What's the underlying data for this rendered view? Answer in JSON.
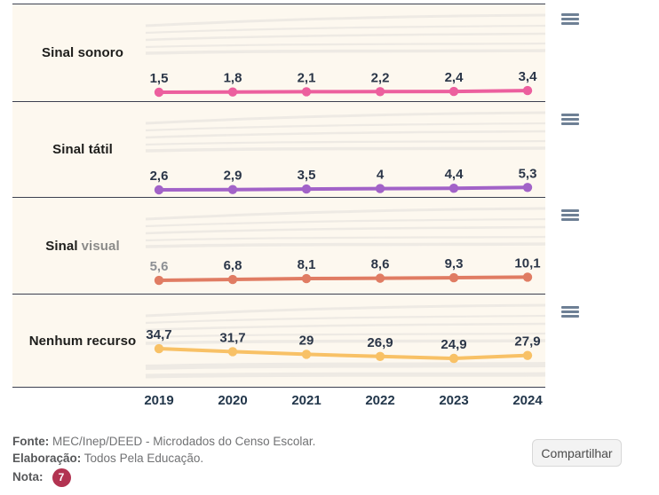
{
  "chart_data": {
    "type": "line",
    "layout": "small-multiples",
    "categories": [
      "2019",
      "2020",
      "2021",
      "2022",
      "2023",
      "2024"
    ],
    "series": [
      {
        "name": "Sinal sonoro",
        "name_primary": "Sinal sonoro",
        "name_secondary": "",
        "values": [
          1.5,
          1.8,
          2.1,
          2.2,
          2.4,
          3.4
        ],
        "labels": [
          "1,5",
          "1,8",
          "2,1",
          "2,2",
          "2,4",
          "3,4"
        ],
        "color": "#ec5f9e",
        "first_label_muted": false
      },
      {
        "name": "Sinal tátil",
        "name_primary": "Sinal tátil",
        "name_secondary": "",
        "values": [
          2.6,
          2.9,
          3.5,
          4,
          4.4,
          5.3
        ],
        "labels": [
          "2,6",
          "2,9",
          "3,5",
          "4",
          "4,4",
          "5,3"
        ],
        "color": "#a263c8",
        "first_label_muted": false
      },
      {
        "name": "Sinal visual",
        "name_primary": "Sinal",
        "name_secondary": "visual",
        "values": [
          5.6,
          6.8,
          8.1,
          8.6,
          9.3,
          10.1
        ],
        "labels": [
          "5,6",
          "6,8",
          "8,1",
          "8,6",
          "9,3",
          "10,1"
        ],
        "color": "#e07c63",
        "first_label_muted": true
      },
      {
        "name": "Nenhum recurso",
        "name_primary": "Nenhum recurso",
        "name_secondary": "",
        "values": [
          34.7,
          31.7,
          29,
          26.9,
          24.9,
          27.9
        ],
        "labels": [
          "34,7",
          "31,7",
          "29",
          "26,9",
          "24,9",
          "27,9"
        ],
        "color": "#f8c166",
        "first_label_muted": false
      }
    ],
    "title": "",
    "xlabel": "",
    "ylabel": "",
    "grid": false,
    "legend_position": "none",
    "value_label_color": "#2b3648",
    "muted_label_color": "#8d9094",
    "axis_label_color": "#22364a",
    "panel_background": "#fdf8ef",
    "separator_color": "#3c4050"
  },
  "menus": {
    "icon": "hamburger-menu-icon",
    "count": 4,
    "color": "#6e8095"
  },
  "footer": {
    "fonte_label": "Fonte:",
    "fonte_text": " MEC/Inep/DEED - Microdados do Censo Escolar.",
    "elaboracao_label": "Elaboração:",
    "elaboracao_text": " Todos Pela Educação.",
    "nota_label": "Nota:",
    "nota_badge": "7",
    "nota_badge_color": "#b23351"
  },
  "share": {
    "label": "Compartilhar"
  }
}
